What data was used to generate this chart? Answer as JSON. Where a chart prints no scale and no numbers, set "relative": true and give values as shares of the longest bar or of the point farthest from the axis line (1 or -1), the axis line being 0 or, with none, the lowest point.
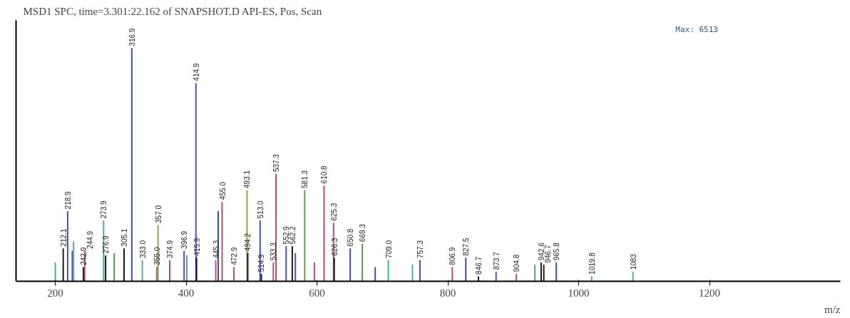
{
  "chart_data": {
    "type": "bar",
    "relative": true,
    "title": "MSD1 SPC, time=3.301:22.162 of SNAPSHOT.D API-ES, Pos, Scan",
    "xlabel": "m/z",
    "annotations": [
      "Max: 6513",
      {
        "text": "212.1",
        "x": 212.1,
        "y": 0.14
      },
      {
        "text": "218.9",
        "x": 218.9,
        "y": 0.3
      },
      {
        "text": "242.9",
        "x": 242.9,
        "y": 0.06
      },
      {
        "text": "244.9",
        "x": 244.9,
        "y": 0.13
      },
      {
        "text": "273.9",
        "x": 273.9,
        "y": 0.26
      },
      {
        "text": "276.9",
        "x": 276.9,
        "y": 0.11
      },
      {
        "text": "305.1",
        "x": 305.1,
        "y": 0.14
      },
      {
        "text": "316.9",
        "x": 316.9,
        "y": 1.0
      },
      {
        "text": "333.0",
        "x": 333.0,
        "y": 0.09
      },
      {
        "text": "355.0",
        "x": 355.0,
        "y": 0.06
      },
      {
        "text": "357.0",
        "x": 357.0,
        "y": 0.24
      },
      {
        "text": "374.9",
        "x": 374.9,
        "y": 0.09
      },
      {
        "text": "396.9",
        "x": 396.9,
        "y": 0.13
      },
      {
        "text": "414.9",
        "x": 414.9,
        "y": 0.85
      },
      {
        "text": "415.9",
        "x": 415.9,
        "y": 0.1
      },
      {
        "text": "445.3",
        "x": 445.3,
        "y": 0.09
      },
      {
        "text": "455.0",
        "x": 455.0,
        "y": 0.34
      },
      {
        "text": "472.9",
        "x": 472.9,
        "y": 0.06
      },
      {
        "text": "493.1",
        "x": 493.1,
        "y": 0.39
      },
      {
        "text": "494.2",
        "x": 494.2,
        "y": 0.12
      },
      {
        "text": "513.0",
        "x": 513.0,
        "y": 0.26
      },
      {
        "text": "514.9",
        "x": 514.9,
        "y": 0.03
      },
      {
        "text": "533.3",
        "x": 533.3,
        "y": 0.08
      },
      {
        "text": "537.3",
        "x": 537.3,
        "y": 0.46
      },
      {
        "text": "552.9",
        "x": 552.9,
        "y": 0.15
      },
      {
        "text": "562.2",
        "x": 562.2,
        "y": 0.15
      },
      {
        "text": "581.3",
        "x": 581.3,
        "y": 0.39
      },
      {
        "text": "610.8",
        "x": 610.8,
        "y": 0.41
      },
      {
        "text": "625.3",
        "x": 625.3,
        "y": 0.25
      },
      {
        "text": "626.3",
        "x": 626.3,
        "y": 0.1
      },
      {
        "text": "650.8",
        "x": 650.8,
        "y": 0.14
      },
      {
        "text": "669.3",
        "x": 669.3,
        "y": 0.16
      },
      {
        "text": "709.0",
        "x": 709.0,
        "y": 0.09
      },
      {
        "text": "757.3",
        "x": 757.3,
        "y": 0.09
      },
      {
        "text": "806.9",
        "x": 806.9,
        "y": 0.06
      },
      {
        "text": "827.5",
        "x": 827.5,
        "y": 0.1
      },
      {
        "text": "846.7",
        "x": 846.7,
        "y": 0.02
      },
      {
        "text": "873.7",
        "x": 873.7,
        "y": 0.04
      },
      {
        "text": "904.8",
        "x": 904.8,
        "y": 0.03
      },
      {
        "text": "942.6",
        "x": 942.6,
        "y": 0.08
      },
      {
        "text": "946.7",
        "x": 946.7,
        "y": 0.07
      },
      {
        "text": "965.8",
        "x": 965.8,
        "y": 0.08
      },
      {
        "text": "1019.8",
        "x": 1019.8,
        "y": 0.02
      },
      {
        "text": "1083",
        "x": 1083,
        "y": 0.04
      }
    ],
    "grid": false,
    "xlim": [
      140,
      1400
    ],
    "xticks": [
      200,
      400,
      600,
      800,
      1000,
      1200
    ],
    "x": [
      200,
      212.1,
      218.9,
      226,
      228,
      242.9,
      244.9,
      273.9,
      276.9,
      290,
      305.1,
      316.9,
      333.0,
      355.0,
      357.0,
      374.9,
      396.9,
      401,
      414.9,
      415.9,
      445.3,
      449,
      455.0,
      472.9,
      493.1,
      494.2,
      513.0,
      514.9,
      533.3,
      537.3,
      552.9,
      562.2,
      567,
      581.3,
      596,
      610.8,
      625.3,
      626.3,
      650.8,
      669.3,
      689,
      709.0,
      746,
      757.3,
      806.9,
      827.5,
      846.7,
      873.7,
      904.8,
      933,
      942.6,
      946.7,
      965.8,
      1019.8,
      1083
    ],
    "values": [
      0.08,
      0.14,
      0.3,
      0.13,
      0.17,
      0.06,
      0.13,
      0.26,
      0.11,
      0.12,
      0.14,
      1.0,
      0.09,
      0.06,
      0.24,
      0.09,
      0.13,
      0.11,
      0.85,
      0.1,
      0.09,
      0.3,
      0.34,
      0.06,
      0.39,
      0.12,
      0.26,
      0.03,
      0.08,
      0.46,
      0.15,
      0.15,
      0.12,
      0.39,
      0.08,
      0.41,
      0.25,
      0.1,
      0.14,
      0.16,
      0.06,
      0.09,
      0.07,
      0.09,
      0.06,
      0.1,
      0.02,
      0.04,
      0.03,
      0.07,
      0.08,
      0.07,
      0.08,
      0.02,
      0.04
    ],
    "colors": [
      "#4fa3a8",
      "#111111",
      "#4a4ab0",
      "#4a4ab0",
      "#4fa3a8",
      "#111111",
      "#b04a6a",
      "#4fa3a8",
      "#111111",
      "#5a9a4a",
      "#111111",
      "#3a4ab0",
      "#4fa3a8",
      "#b04a6a",
      "#7aa84a",
      "#b04a6a",
      "#4a4ab0",
      "#4fa3a8",
      "#4a4ab0",
      "#111111",
      "#b04a6a",
      "#3a4ab0",
      "#b04a6a",
      "#b04a6a",
      "#7aa84a",
      "#111111",
      "#3a4ab0",
      "#111111",
      "#b04a6a",
      "#b04a6a",
      "#3a4ab0",
      "#111111",
      "#4a4ab0",
      "#5a9a4a",
      "#b04a6a",
      "#b04a6a",
      "#b04a6a",
      "#111111",
      "#3a4ab0",
      "#5a9a4a",
      "#4a4ab0",
      "#4fa3a8",
      "#4fa3a8",
      "#3a4ab0",
      "#b04a6a",
      "#3a4ab0",
      "#111111",
      "#4a4ab0",
      "#b04a6a",
      "#4fa3a8",
      "#111111",
      "#111111",
      "#3a4ab0",
      "#4fa3a8",
      "#4fa3a8"
    ]
  }
}
